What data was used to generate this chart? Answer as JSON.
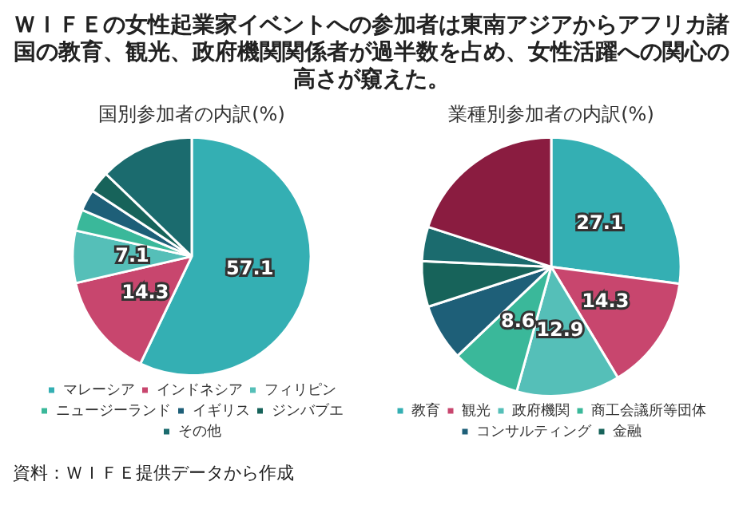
{
  "chart_data": [
    {
      "type": "pie",
      "title": "国別参加者の内訳(%)",
      "annotations": [
        "ＷＩＦＥの女性起業家イベントへの参加者は東南アジアからアフリカ諸国の教育、観光、政府機関関係者が過半数を占め、女性活躍への関心の高さが窺えた。"
      ],
      "categories": [
        "マレーシア",
        "インドネシア",
        "フィリピン",
        "ニュージーランド",
        "イギリス",
        "ジンバブエ",
        "その他"
      ],
      "values": [
        57.1,
        14.3,
        7.1,
        2.9,
        2.9,
        2.9,
        12.8
      ],
      "colors": [
        "#34afb3",
        "#c8466e",
        "#55bfb8",
        "#3ab89a",
        "#1e5f78",
        "#17635a",
        "#1b6b6e"
      ],
      "value_labels": [
        "57.1",
        "14.3",
        "7.1",
        null,
        null,
        null,
        null
      ],
      "legend": "bottom"
    },
    {
      "type": "pie",
      "title": "業種別参加者の内訳(%)",
      "annotations": [
        "資料：ＷＩＦＥ提供データから作成"
      ],
      "categories": [
        "教育",
        "観光",
        "政府機関",
        "商工会議所等団体",
        "コンサルティング",
        "金融",
        null,
        null
      ],
      "values": [
        27.1,
        14.3,
        12.9,
        8.6,
        7.1,
        5.7,
        4.3,
        20
      ],
      "colors": [
        "#34afb3",
        "#c8466e",
        "#55bfb8",
        "#3ab89a",
        "#1e5f78",
        "#17635a",
        "#1b6b6e",
        "#8a1c40"
      ],
      "value_labels": [
        "27.1",
        "14.3",
        "12.9",
        "8.6",
        null,
        null,
        null,
        null
      ],
      "legend": "bottom"
    }
  ]
}
